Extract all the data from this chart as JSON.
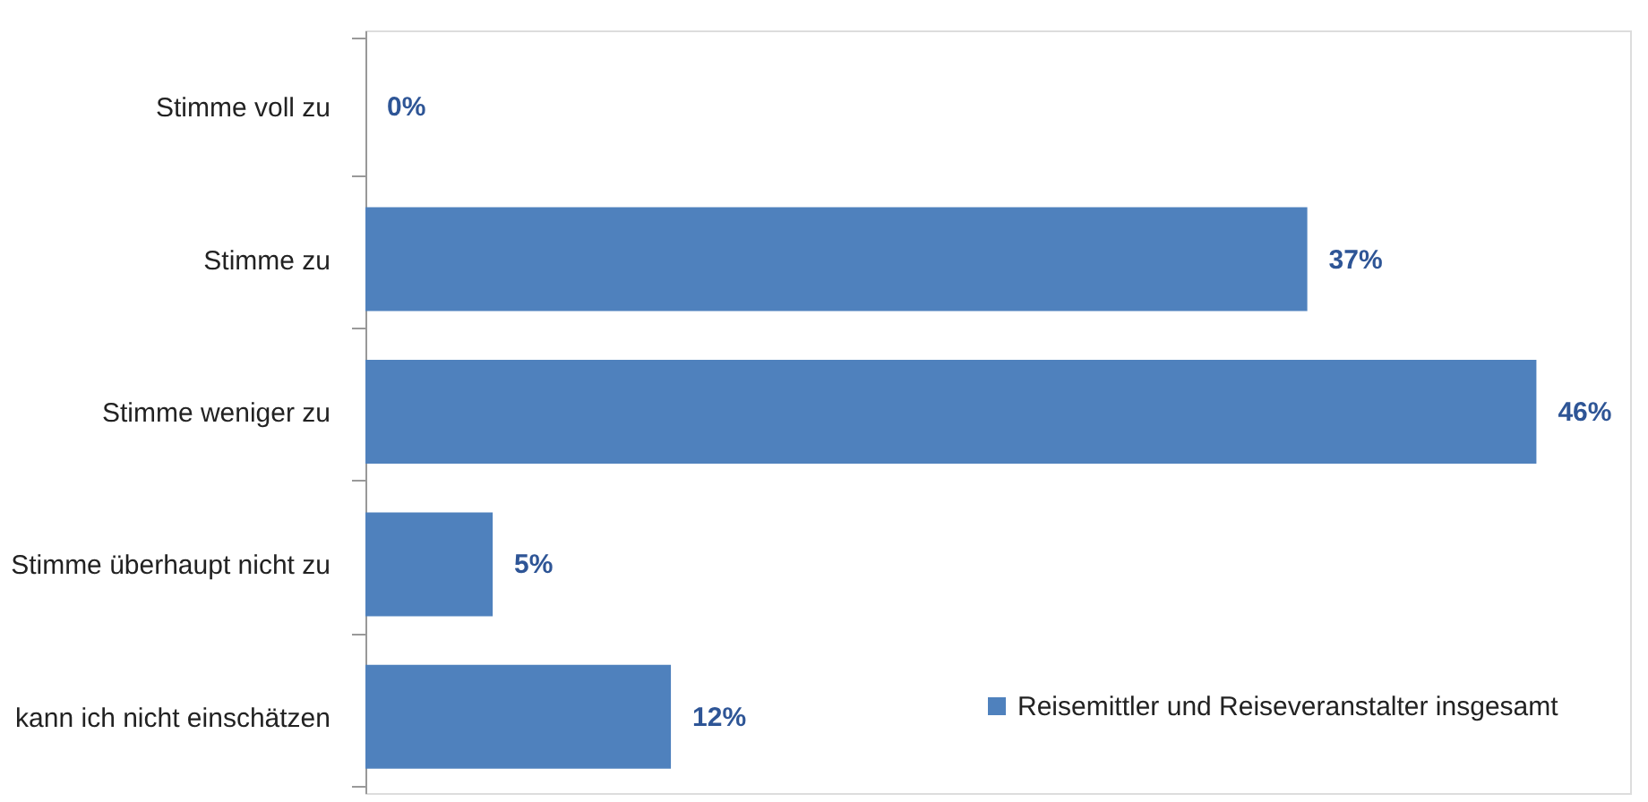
{
  "chart_data": {
    "type": "bar",
    "orientation": "horizontal",
    "categories": [
      "Stimme voll zu",
      "Stimme zu",
      "Stimme weniger zu",
      "Stimme überhaupt nicht zu",
      "kann ich nicht einschätzen"
    ],
    "series": [
      {
        "name": "Reisemittler und Reiseveranstalter insgesamt",
        "color": "#4f81bd",
        "values": [
          0,
          37,
          46,
          5,
          12
        ],
        "value_labels": [
          "0%",
          "37%",
          "46%",
          "5%",
          "12%"
        ]
      }
    ],
    "legend": "bottom right",
    "grid": false
  }
}
